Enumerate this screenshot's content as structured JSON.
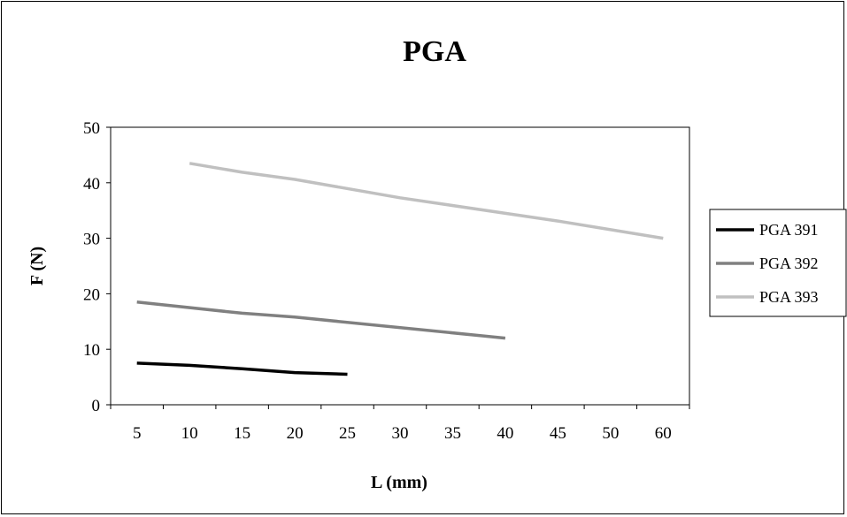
{
  "chart_data": {
    "type": "line",
    "title": "PGA",
    "xlabel": "L (mm)",
    "ylabel": "F (N)",
    "categories": [
      "5",
      "10",
      "15",
      "20",
      "25",
      "30",
      "35",
      "40",
      "45",
      "50",
      "60"
    ],
    "ylim": [
      0,
      50
    ],
    "yticks": [
      0,
      10,
      20,
      30,
      40,
      50
    ],
    "grid": false,
    "legend_position": "right",
    "series": [
      {
        "name": "PGA 391",
        "color": "#000000",
        "x": [
          5,
          10,
          15,
          20,
          25
        ],
        "y": [
          7.5,
          7.1,
          6.5,
          5.8,
          5.5
        ]
      },
      {
        "name": "PGA 392",
        "color": "#808080",
        "x": [
          5,
          15,
          20,
          40
        ],
        "y": [
          18.5,
          16.5,
          15.8,
          12.0
        ]
      },
      {
        "name": "PGA 393",
        "color": "#c0c0c0",
        "x": [
          10,
          15,
          20,
          30,
          45,
          60
        ],
        "y": [
          43.5,
          41.9,
          40.6,
          37.3,
          33.1,
          30.0
        ]
      }
    ]
  }
}
